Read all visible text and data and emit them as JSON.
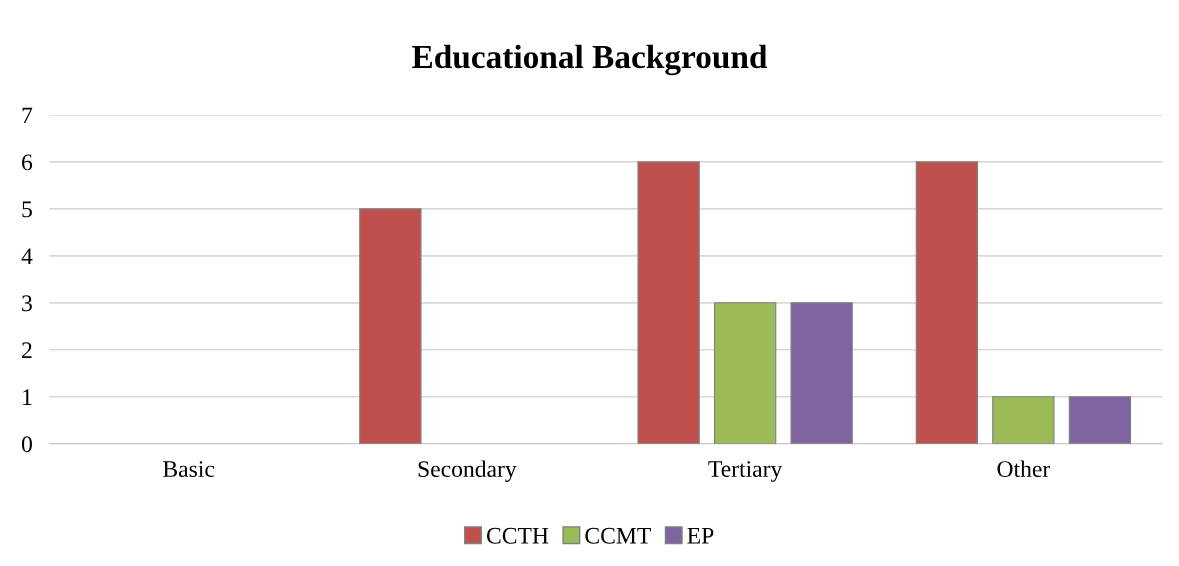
{
  "chart_data": {
    "type": "bar",
    "title": "Educational Background",
    "categories": [
      "Basic",
      "Secondary",
      "Tertiary",
      "Other"
    ],
    "series": [
      {
        "name": "CCTH",
        "color": "#c0504d",
        "values": [
          null,
          5,
          6,
          6
        ]
      },
      {
        "name": "CCMT",
        "color": "#9bbb59",
        "values": [
          null,
          null,
          3,
          1
        ]
      },
      {
        "name": "EP",
        "color": "#8064a2",
        "values": [
          null,
          null,
          3,
          1
        ]
      }
    ],
    "ylim": [
      0,
      7
    ],
    "yticks": [
      0,
      1,
      2,
      3,
      4,
      5,
      6,
      7
    ],
    "grid": "y",
    "legend": "bottom"
  }
}
